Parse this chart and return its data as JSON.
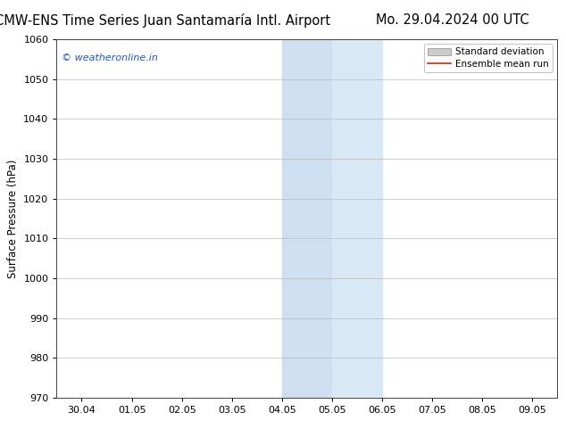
{
  "title_left": "ECMW-ENS Time Series Juan Santamaría Intl. Airport",
  "title_right": "Mo. 29.04.2024 00 UTC",
  "ylabel": "Surface Pressure (hPa)",
  "ylim": [
    970,
    1060
  ],
  "yticks": [
    970,
    980,
    990,
    1000,
    1010,
    1020,
    1030,
    1040,
    1050,
    1060
  ],
  "x_start": "2024-04-29 12:00:00",
  "x_end": "2024-05-09 12:00:00",
  "x_tick_dates": [
    "2024-04-30",
    "2024-05-01",
    "2024-05-02",
    "2024-05-03",
    "2024-05-04",
    "2024-05-05",
    "2024-05-06",
    "2024-05-07",
    "2024-05-08",
    "2024-05-09"
  ],
  "x_tick_labels": [
    "30.04",
    "01.05",
    "02.05",
    "03.05",
    "04.05",
    "05.05",
    "06.05",
    "07.05",
    "08.05",
    "09.05"
  ],
  "shade1_start": "2024-05-04",
  "shade1_end": "2024-05-05",
  "shade2_start": "2024-05-05",
  "shade2_end": "2024-05-06",
  "shade1_color": "#cddff0",
  "shade2_color": "#d9e8f5",
  "watermark": "© weatheronline.in",
  "watermark_color": "#2255bb",
  "background_plot": "#ffffff",
  "legend_std_color": "#cccccc",
  "legend_mean_color": "#dd2200",
  "grid_color": "#bbbbbb",
  "title_fontsize": 10.5,
  "ylabel_fontsize": 8.5,
  "tick_fontsize": 8,
  "watermark_fontsize": 8,
  "legend_fontsize": 7.5
}
